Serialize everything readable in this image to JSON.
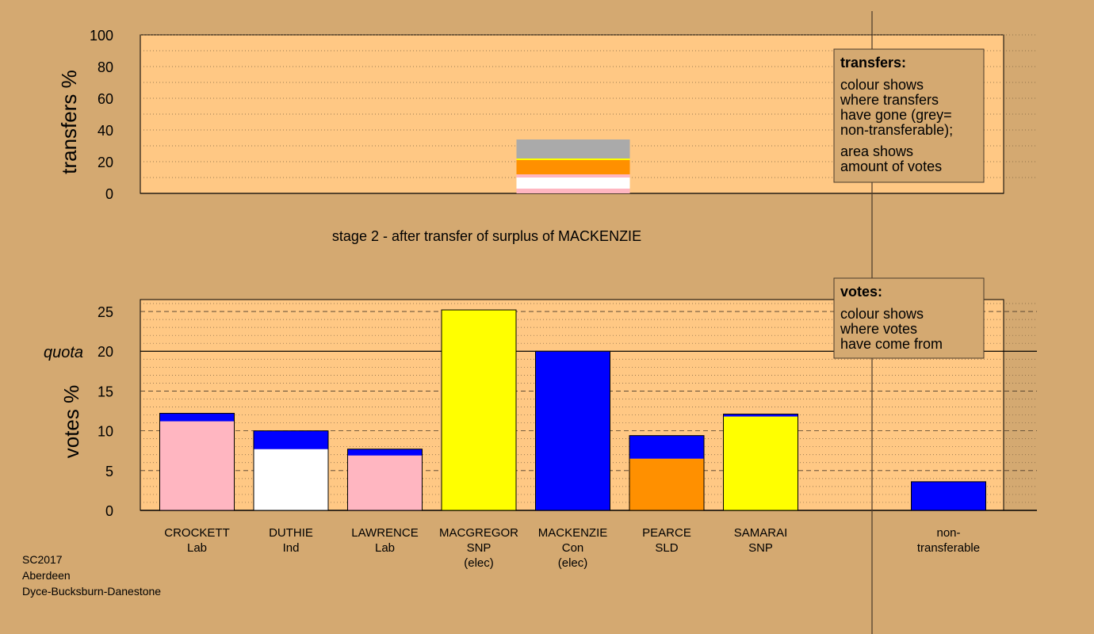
{
  "chart_data": [
    {
      "type": "bar",
      "panel": "transfers",
      "ylabel": "transfers %",
      "ylim": [
        0,
        100
      ],
      "yticks": [
        0,
        20,
        40,
        60,
        80,
        100
      ],
      "subtitle": "stage 2 - after transfer of surplus of MACKENZIE",
      "transfer_bar": {
        "category_index": 4,
        "segments": [
          {
            "party": "Lab",
            "color": "#ffb6c1",
            "from": 0,
            "to": 3
          },
          {
            "party": "Ind",
            "color": "#ffffff",
            "from": 3,
            "to": 10
          },
          {
            "party": "Lab",
            "color": "#ffb6c1",
            "from": 10,
            "to": 12
          },
          {
            "party": "SLD",
            "color": "#ff9000",
            "from": 12,
            "to": 21
          },
          {
            "party": "SNP",
            "color": "#ffff00",
            "from": 21,
            "to": 22
          },
          {
            "party": "non-transferable",
            "color": "#aaaaaa",
            "from": 22,
            "to": 34
          }
        ]
      },
      "legend": {
        "title": "transfers:",
        "lines": [
          "colour shows",
          "where transfers",
          "have gone (grey=",
          "non-transferable);",
          "area shows",
          "amount of votes"
        ]
      }
    },
    {
      "type": "bar",
      "panel": "votes",
      "ylabel": "votes %",
      "ylim": [
        0,
        26.5
      ],
      "yticks": [
        0,
        5,
        10,
        15,
        20,
        25
      ],
      "quota": 20,
      "quota_label": "quota",
      "categories": [
        {
          "name": "CROCKETT",
          "party": "Lab",
          "note": ""
        },
        {
          "name": "DUTHIE",
          "party": "Ind",
          "note": ""
        },
        {
          "name": "LAWRENCE",
          "party": "Lab",
          "note": ""
        },
        {
          "name": "MACGREGOR",
          "party": "SNP",
          "note": "(elec)"
        },
        {
          "name": "MACKENZIE",
          "party": "Con",
          "note": "(elec)"
        },
        {
          "name": "PEARCE",
          "party": "SLD",
          "note": ""
        },
        {
          "name": "SAMARAI",
          "party": "SNP",
          "note": ""
        },
        {
          "name": "",
          "party": "",
          "note": ""
        },
        {
          "name": "non-",
          "party": "transferable",
          "note": ""
        }
      ],
      "bars": [
        {
          "first": 11.2,
          "first_color": "#ffb6c1",
          "transfer": 1.0
        },
        {
          "first": 7.7,
          "first_color": "#ffffff",
          "transfer": 2.3
        },
        {
          "first": 6.9,
          "first_color": "#ffb6c1",
          "transfer": 0.8
        },
        {
          "first": 25.2,
          "first_color": "#ffff00",
          "transfer": 0
        },
        {
          "first": 0,
          "first_color": "#0000ff",
          "transfer": 20.0
        },
        {
          "first": 6.5,
          "first_color": "#ff9000",
          "transfer": 2.9
        },
        {
          "first": 11.8,
          "first_color": "#ffff00",
          "transfer": 0.3
        },
        null,
        {
          "first": 0,
          "first_color": "#0000ff",
          "transfer": 3.6
        }
      ],
      "transfer_color": "#0000ff",
      "legend": {
        "title": "votes:",
        "lines": [
          "colour shows",
          "where votes",
          "have come from"
        ]
      }
    }
  ],
  "footer": [
    "SC2017",
    "Aberdeen",
    "Dyce-Bucksburn-Danestone"
  ],
  "colors": {
    "background": "#d4a971",
    "panel": "#ffc884"
  }
}
